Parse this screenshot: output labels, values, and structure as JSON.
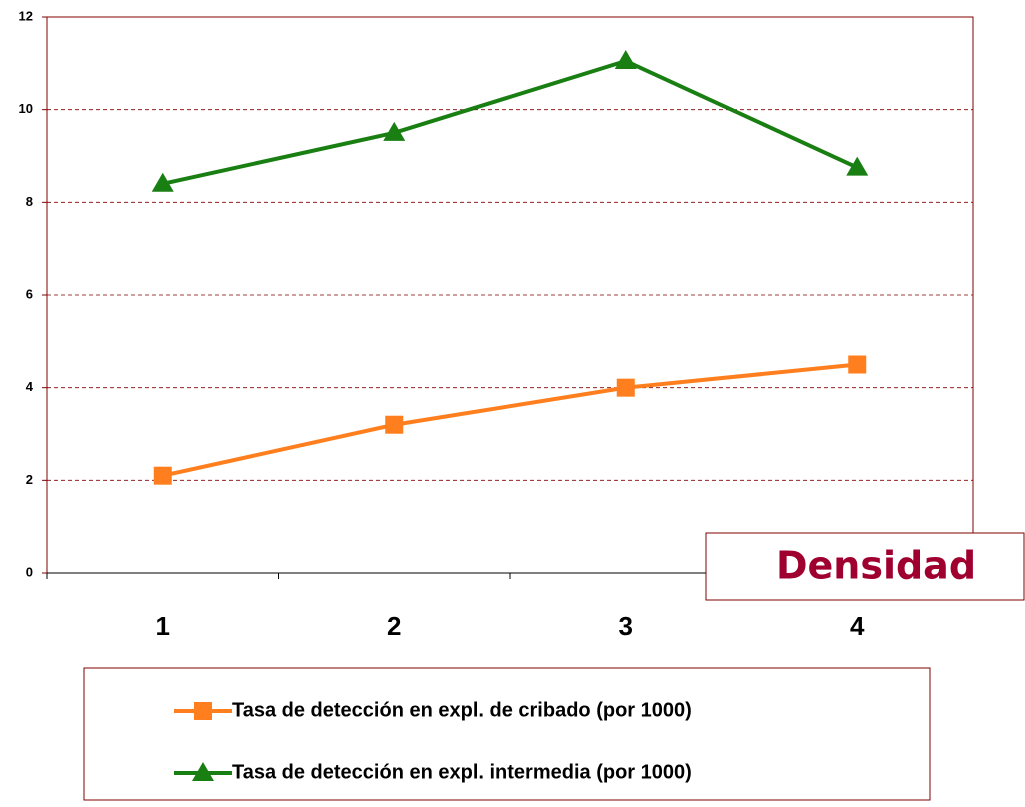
{
  "chart_data": {
    "type": "line",
    "categories": [
      1,
      2,
      3,
      4
    ],
    "series": [
      {
        "name": "Tasa de detección en expl. de cribado (por 1000)",
        "color": "#ff7f1e",
        "marker": "square",
        "values": [
          2.1,
          3.2,
          4.0,
          4.5
        ]
      },
      {
        "name": "Tasa de detección en expl. intermedia (por 1000)",
        "color": "#1a7f12",
        "marker": "triangle",
        "values": [
          8.4,
          9.5,
          11.05,
          8.75
        ]
      }
    ],
    "ylim": [
      0,
      12
    ],
    "yticks": [
      0,
      2,
      4,
      6,
      8,
      10,
      12
    ],
    "grid": true,
    "annotation": "Densidad",
    "legend": "bottom"
  }
}
